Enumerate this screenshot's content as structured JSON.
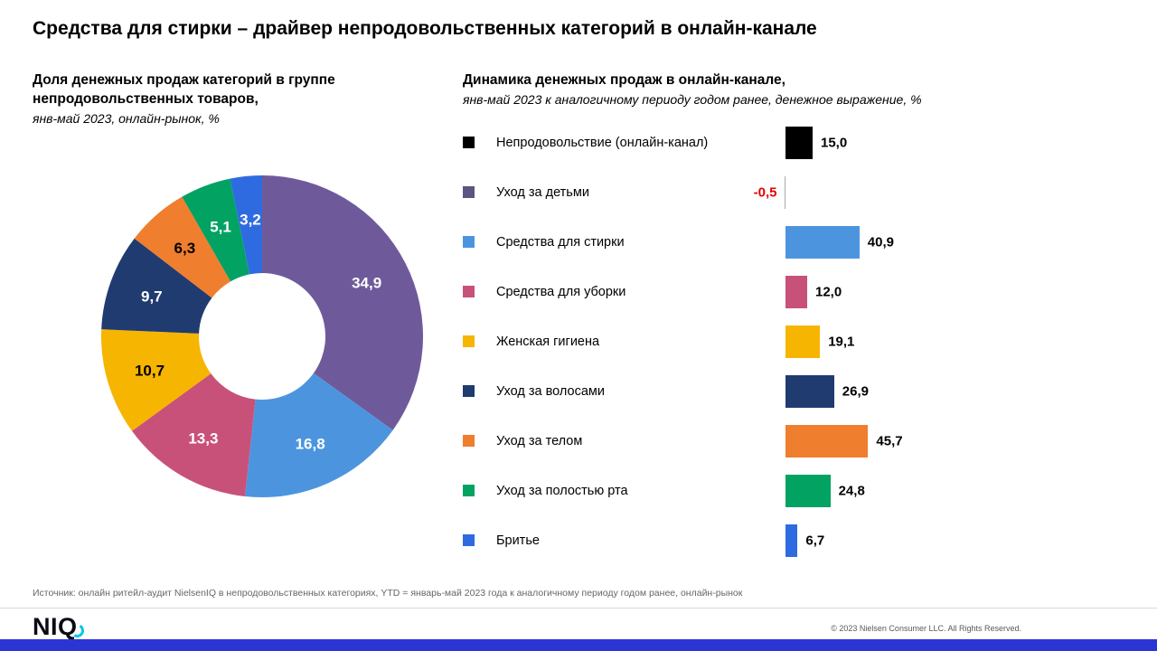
{
  "page": {
    "title": "Средства для стирки – драйвер непродовольственных категорий в онлайн-канале",
    "footnote": "Источник: онлайн ритейл-аудит NielsenIQ в непродовольственных категориях, YTD = январь-май 2023 года к аналогичному периоду годом ранее, онлайн-рынок",
    "copyright": "© 2023 Nielsen Consumer LLC. All Rights Reserved.",
    "logo_text": "NIQ"
  },
  "left_header": {
    "title": "Доля денежных продаж категорий в группе\nнепродовольственных товаров,",
    "subtitle": "янв-май 2023, онлайн-рынок, %"
  },
  "right_header": {
    "title": "Динамика денежных продаж в онлайн-канале,",
    "subtitle": "янв-май 2023 к аналогичному периоду годом ранее, денежное выражение, %"
  },
  "theme": {
    "footer_bar_color": "#2b35d4",
    "logo_accent_color": "#00c9e0",
    "separator_color": "#d9d9d9",
    "footnote_color": "#666666"
  },
  "chart_data": [
    {
      "type": "pie",
      "title": "Доля денежных продаж категорий в группе непродовольственных товаров",
      "subtitle": "янв-май 2023, онлайн-рынок, %",
      "donut": true,
      "start_angle_deg": 0,
      "direction": "clockwise",
      "labels": [
        "Уход за детьми",
        "Средства для стирки",
        "Средства для уборки",
        "Женская гигиена",
        "Уход за волосами",
        "Уход за телом",
        "Уход за полостью рта",
        "Бритье"
      ],
      "values": [
        34.9,
        16.8,
        13.3,
        10.7,
        9.7,
        6.3,
        5.1,
        3.2
      ],
      "display_values": [
        "34,9",
        "16,8",
        "13,3",
        "10,7",
        "9,7",
        "6,3",
        "5,1",
        "3,2"
      ],
      "colors": [
        "#6e5a9b",
        "#4c95de",
        "#c85179",
        "#f6b500",
        "#1f3b70",
        "#ef7e2e",
        "#02a263",
        "#2f6be0"
      ],
      "value_label_colors": [
        "#ffffff",
        "#ffffff",
        "#ffffff",
        "#000000",
        "#ffffff",
        "#000000",
        "#ffffff",
        "#ffffff"
      ]
    },
    {
      "type": "bar",
      "orientation": "horizontal",
      "title": "Динамика денежных продаж в онлайн-канале",
      "subtitle": "янв-май 2023 к аналогичному периоду годом ранее, денежное выражение, %",
      "categories": [
        "Непродовольствие (онлайн-канал)",
        "Уход за детьми",
        "Средства для стирки",
        "Средства для уборки",
        "Женская гигиена",
        "Уход за волосами",
        "Уход за телом",
        "Уход за полостью рта",
        "Бритье"
      ],
      "values": [
        15.0,
        -0.5,
        40.9,
        12.0,
        19.1,
        26.9,
        45.7,
        24.8,
        6.7
      ],
      "display_values": [
        "15,0",
        "-0,5",
        "40,9",
        "12,0",
        "19,1",
        "26,9",
        "45,7",
        "24,8",
        "6,7"
      ],
      "colors": [
        "#000000",
        "#5b567f",
        "#4c95de",
        "#c85179",
        "#f6b500",
        "#1f3b70",
        "#ef7e2e",
        "#02a263",
        "#2f6be0"
      ],
      "negative_bar_color": "#a9a9a9",
      "negative_value_color": "#e60000",
      "value_label_color": "#000000",
      "xlim": [
        -5,
        50
      ]
    }
  ]
}
